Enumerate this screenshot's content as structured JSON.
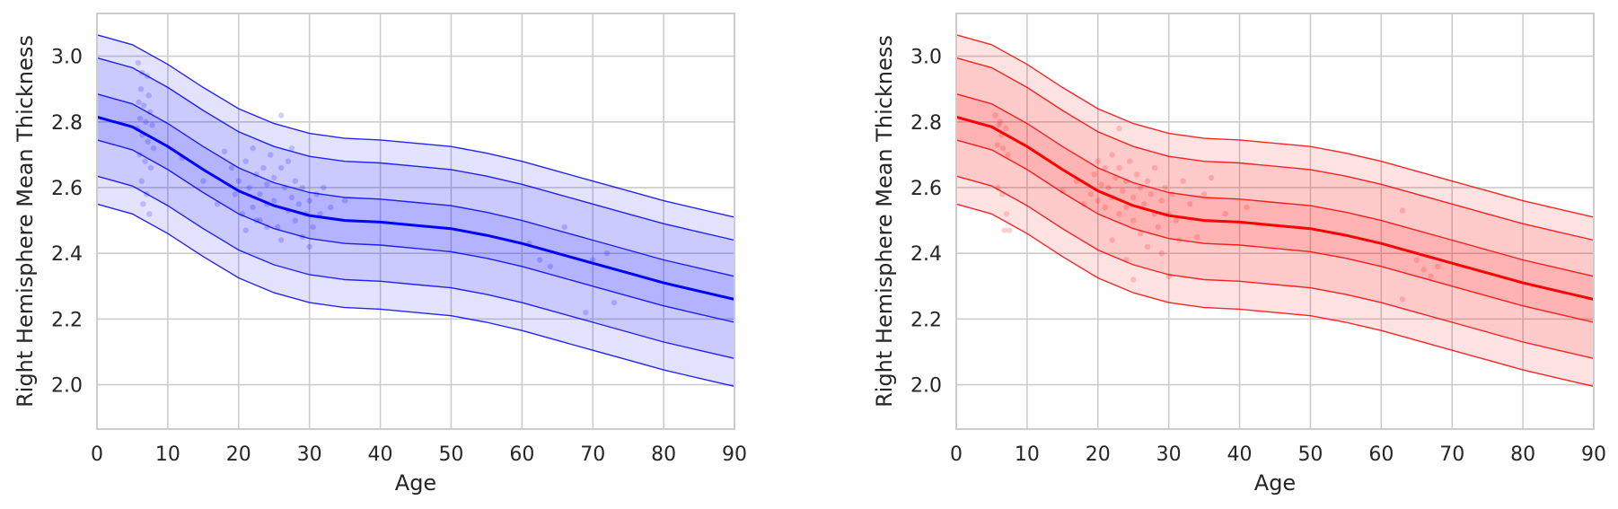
{
  "chart_data": [
    {
      "type": "area",
      "color": "#0000ff",
      "xlabel": "Age",
      "ylabel": "Right Hemisphere Mean Thickness",
      "xlim": [
        0,
        90
      ],
      "ylim": [
        1.865,
        3.13
      ],
      "xticks": [
        0,
        10,
        20,
        30,
        40,
        50,
        60,
        70,
        80,
        90
      ],
      "yticks": [
        2.0,
        2.2,
        2.4,
        2.6,
        2.8,
        3.0
      ],
      "grid": true,
      "x": [
        0,
        5,
        10,
        15,
        20,
        25,
        30,
        35,
        40,
        45,
        50,
        55,
        60,
        65,
        70,
        75,
        80,
        85,
        90
      ],
      "median": [
        2.815,
        2.785,
        2.725,
        2.655,
        2.59,
        2.545,
        2.515,
        2.5,
        2.495,
        2.485,
        2.475,
        2.455,
        2.43,
        2.4,
        2.37,
        2.34,
        2.31,
        2.285,
        2.26
      ],
      "centile_offsets": [
        0.25,
        0.18,
        0.07,
        -0.07,
        -0.18,
        -0.265
      ],
      "scatter": [
        [
          5.8,
          2.98
        ],
        [
          6.4,
          2.95
        ],
        [
          7.1,
          2.94
        ],
        [
          6.2,
          2.9
        ],
        [
          7.3,
          2.88
        ],
        [
          5.9,
          2.86
        ],
        [
          6.6,
          2.85
        ],
        [
          7.5,
          2.83
        ],
        [
          6.1,
          2.81
        ],
        [
          6.9,
          2.8
        ],
        [
          7.8,
          2.79
        ],
        [
          5.7,
          2.78
        ],
        [
          6.4,
          2.76
        ],
        [
          7.2,
          2.74
        ],
        [
          8.0,
          2.72
        ],
        [
          6.0,
          2.7
        ],
        [
          6.8,
          2.68
        ],
        [
          7.6,
          2.66
        ],
        [
          6.3,
          2.62
        ],
        [
          7.0,
          2.58
        ],
        [
          6.5,
          2.55
        ],
        [
          7.4,
          2.52
        ],
        [
          12,
          2.69
        ],
        [
          15,
          2.62
        ],
        [
          17,
          2.55
        ],
        [
          18,
          2.71
        ],
        [
          19,
          2.66
        ],
        [
          19.5,
          2.58
        ],
        [
          20,
          2.62
        ],
        [
          20.5,
          2.52
        ],
        [
          21,
          2.68
        ],
        [
          21.5,
          2.6
        ],
        [
          22,
          2.54
        ],
        [
          22,
          2.72
        ],
        [
          22.5,
          2.64
        ],
        [
          23,
          2.58
        ],
        [
          23,
          2.5
        ],
        [
          23.5,
          2.66
        ],
        [
          24,
          2.61
        ],
        [
          24,
          2.55
        ],
        [
          24.5,
          2.7
        ],
        [
          25,
          2.63
        ],
        [
          25,
          2.56
        ],
        [
          25.5,
          2.48
        ],
        [
          26,
          2.82
        ],
        [
          26,
          2.66
        ],
        [
          26.5,
          2.6
        ],
        [
          27,
          2.53
        ],
        [
          27,
          2.68
        ],
        [
          27.5,
          2.57
        ],
        [
          28,
          2.62
        ],
        [
          28,
          2.5
        ],
        [
          28.5,
          2.55
        ],
        [
          29,
          2.45
        ],
        [
          29,
          2.6
        ],
        [
          29.5,
          2.52
        ],
        [
          30,
          2.56
        ],
        [
          30,
          2.42
        ],
        [
          30.5,
          2.48
        ],
        [
          31,
          2.58
        ],
        [
          31.5,
          2.52
        ],
        [
          32,
          2.6
        ],
        [
          33,
          2.54
        ],
        [
          35,
          2.56
        ],
        [
          24,
          2.48
        ],
        [
          21,
          2.47
        ],
        [
          22.5,
          2.5
        ],
        [
          26,
          2.44
        ],
        [
          27.5,
          2.72
        ],
        [
          61,
          2.43
        ],
        [
          62.5,
          2.38
        ],
        [
          64,
          2.36
        ],
        [
          66,
          2.48
        ],
        [
          69,
          2.22
        ],
        [
          70,
          2.38
        ],
        [
          72,
          2.4
        ],
        [
          73,
          2.25
        ]
      ]
    },
    {
      "type": "area",
      "color": "#ff0000",
      "xlabel": "Age",
      "ylabel": "Right Hemisphere Mean Thickness",
      "xlim": [
        0,
        90
      ],
      "ylim": [
        1.865,
        3.13
      ],
      "xticks": [
        0,
        10,
        20,
        30,
        40,
        50,
        60,
        70,
        80,
        90
      ],
      "yticks": [
        2.0,
        2.2,
        2.4,
        2.6,
        2.8,
        3.0
      ],
      "grid": true,
      "x": [
        0,
        5,
        10,
        15,
        20,
        25,
        30,
        35,
        40,
        45,
        50,
        55,
        60,
        65,
        70,
        75,
        80,
        85,
        90
      ],
      "median": [
        2.815,
        2.785,
        2.725,
        2.655,
        2.59,
        2.545,
        2.515,
        2.5,
        2.495,
        2.485,
        2.475,
        2.455,
        2.43,
        2.4,
        2.37,
        2.34,
        2.31,
        2.285,
        2.26
      ],
      "centile_offsets": [
        0.25,
        0.18,
        0.07,
        -0.07,
        -0.18,
        -0.265
      ],
      "scatter": [
        [
          5.5,
          2.82
        ],
        [
          6.0,
          2.79
        ],
        [
          6.4,
          2.76
        ],
        [
          7.0,
          2.78
        ],
        [
          5.8,
          2.73
        ],
        [
          6.6,
          2.72
        ],
        [
          7.3,
          2.7
        ],
        [
          6.2,
          2.8
        ],
        [
          5.9,
          2.6
        ],
        [
          6.5,
          2.58
        ],
        [
          7.1,
          2.52
        ],
        [
          6.8,
          2.47
        ],
        [
          7.5,
          2.47
        ],
        [
          15,
          2.59
        ],
        [
          17,
          2.62
        ],
        [
          18,
          2.55
        ],
        [
          19,
          2.58
        ],
        [
          19.5,
          2.64
        ],
        [
          20,
          2.68
        ],
        [
          20,
          2.56
        ],
        [
          20.5,
          2.61
        ],
        [
          21,
          2.54
        ],
        [
          21,
          2.66
        ],
        [
          21.5,
          2.6
        ],
        [
          22,
          2.7
        ],
        [
          22,
          2.57
        ],
        [
          22.5,
          2.63
        ],
        [
          23,
          2.52
        ],
        [
          23,
          2.66
        ],
        [
          23.5,
          2.59
        ],
        [
          24,
          2.62
        ],
        [
          24,
          2.54
        ],
        [
          24.5,
          2.68
        ],
        [
          25,
          2.57
        ],
        [
          25,
          2.5
        ],
        [
          25.5,
          2.64
        ],
        [
          26,
          2.6
        ],
        [
          26,
          2.46
        ],
        [
          26.5,
          2.55
        ],
        [
          27,
          2.62
        ],
        [
          27,
          2.42
        ],
        [
          27.5,
          2.58
        ],
        [
          28,
          2.52
        ],
        [
          28,
          2.66
        ],
        [
          28.5,
          2.48
        ],
        [
          29,
          2.56
        ],
        [
          29,
          2.4
        ],
        [
          29.5,
          2.6
        ],
        [
          30,
          2.52
        ],
        [
          30,
          2.33
        ],
        [
          30.5,
          2.58
        ],
        [
          31,
          2.5
        ],
        [
          32,
          2.62
        ],
        [
          33,
          2.55
        ],
        [
          34,
          2.45
        ],
        [
          35,
          2.58
        ],
        [
          36,
          2.63
        ],
        [
          23,
          2.78
        ],
        [
          24,
          2.38
        ],
        [
          22,
          2.44
        ],
        [
          25,
          2.32
        ],
        [
          31.5,
          2.44
        ],
        [
          38,
          2.52
        ],
        [
          41,
          2.54
        ],
        [
          63,
          2.53
        ],
        [
          65,
          2.38
        ],
        [
          66,
          2.35
        ],
        [
          67,
          2.33
        ],
        [
          68,
          2.36
        ],
        [
          63,
          2.26
        ]
      ]
    }
  ]
}
